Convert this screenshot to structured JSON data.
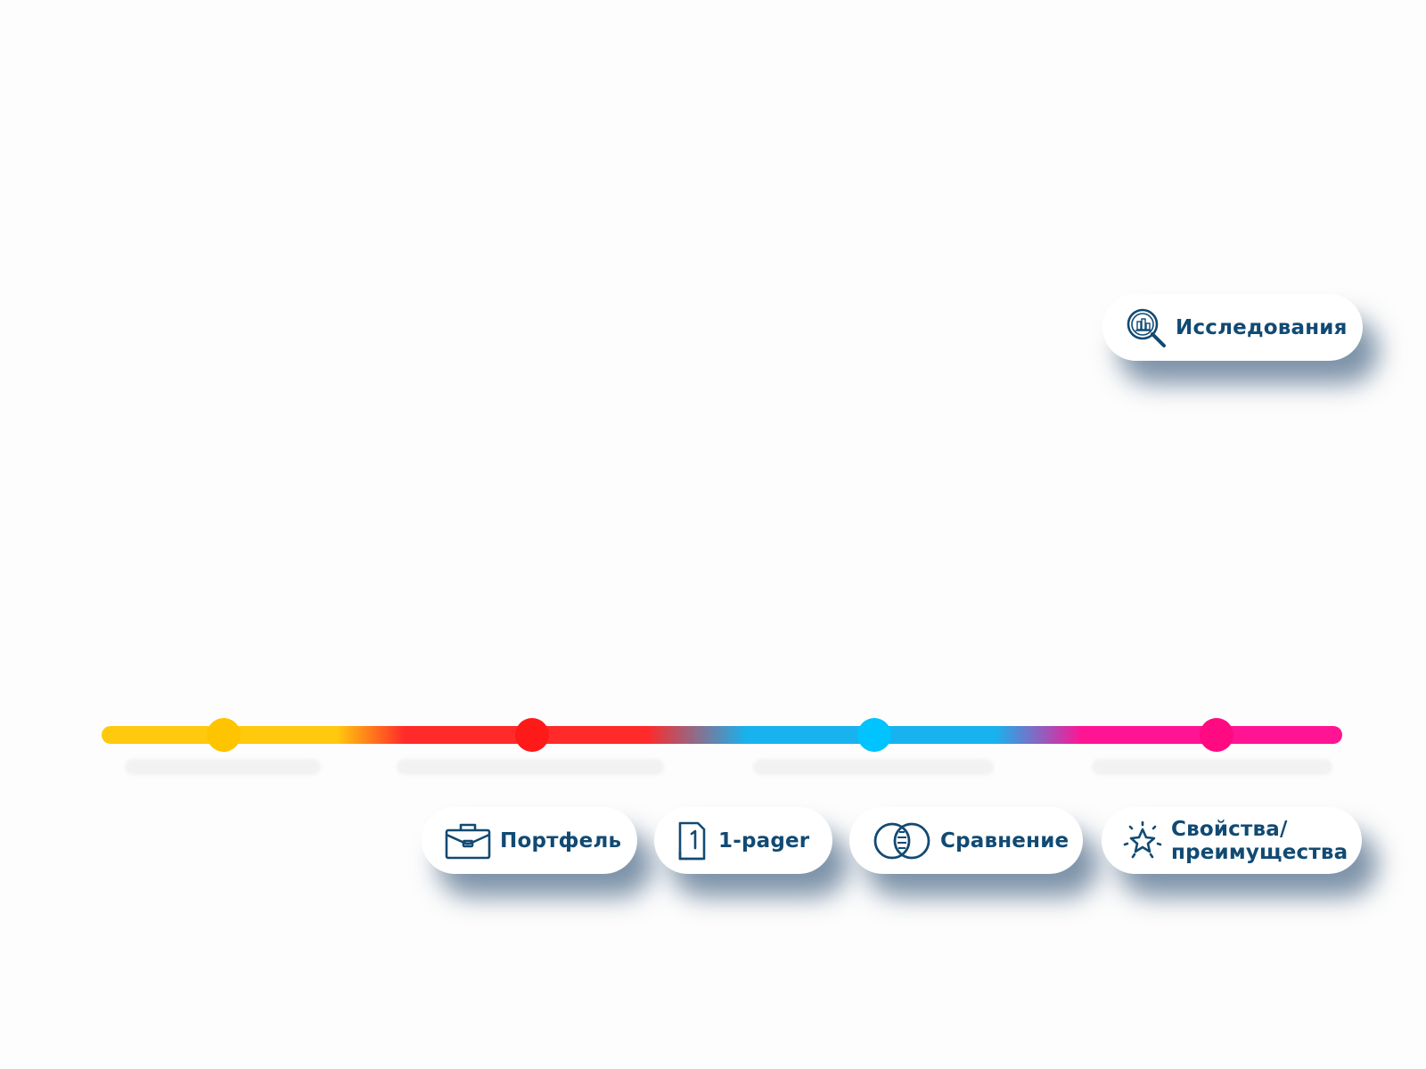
{
  "colors": {
    "stage_yellow": "#FFC90D",
    "stage_red": "#FF2A2A",
    "stage_blue": "#18B2EE",
    "stage_pink": "#FF1493",
    "node_yellow": "#FFC400",
    "node_red": "#FF1A1A",
    "node_blue": "#00C3FF",
    "node_pink": "#FF0A80",
    "label_text": "#114A73"
  },
  "chips": {
    "research": {
      "label": "Исследования",
      "icon": "magnifier-chart-icon"
    },
    "portfolio": {
      "label": "Портфель",
      "icon": "briefcase-icon"
    },
    "onepager": {
      "label": "1-pager",
      "icon": "one-page-document-icon"
    },
    "compare": {
      "label": "Сравнение",
      "icon": "overlapping-circles-icon"
    },
    "props": {
      "line1": "Свойства/",
      "line2": "преимущества",
      "icon": "sparkle-star-icon"
    }
  },
  "timeline": {
    "nodes": 4
  }
}
